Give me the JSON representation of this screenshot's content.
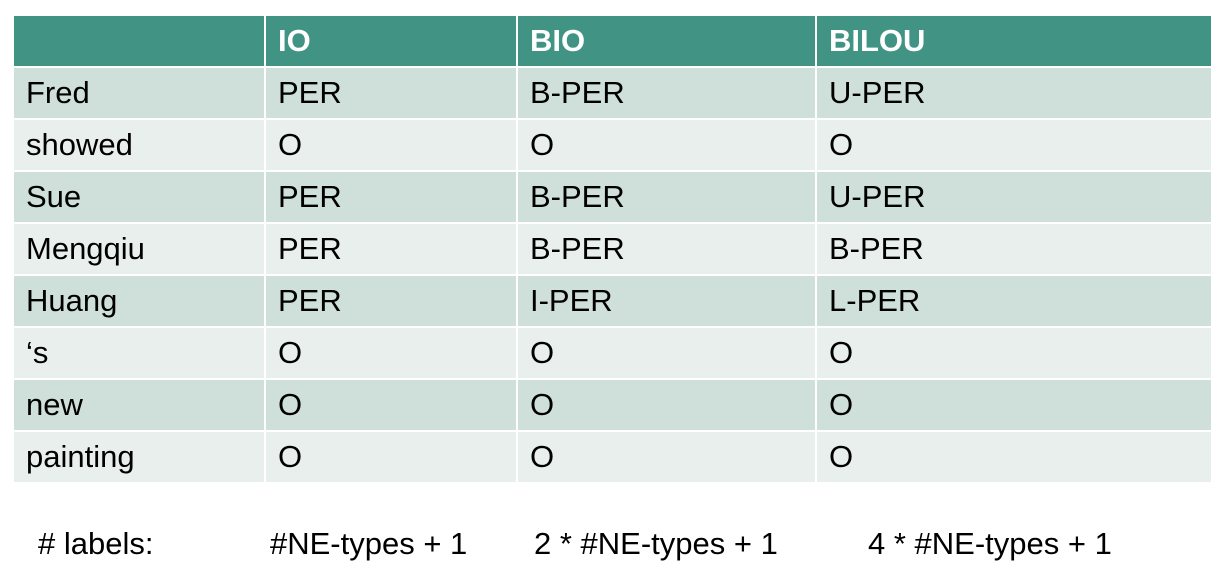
{
  "table": {
    "headers": [
      "",
      "IO",
      "BIO",
      "BILOU"
    ],
    "rows": [
      [
        "Fred",
        "PER",
        "B-PER",
        "U-PER"
      ],
      [
        "showed",
        "O",
        "O",
        "O"
      ],
      [
        "Sue",
        "PER",
        "B-PER",
        "U-PER"
      ],
      [
        "Mengqiu",
        "PER",
        "B-PER",
        "B-PER"
      ],
      [
        "Huang",
        "PER",
        "I-PER",
        "L-PER"
      ],
      [
        "‘s",
        "O",
        "O",
        "O"
      ],
      [
        "new",
        "O",
        "O",
        "O"
      ],
      [
        "painting",
        "O",
        "O",
        "O"
      ]
    ]
  },
  "footer": {
    "label": "# labels:",
    "io": "#NE-types + 1",
    "bio": "2 * #NE-types + 1",
    "bilou": "4 * #NE-types + 1"
  },
  "colors": {
    "header_bg": "#419484",
    "row_dark": "#cfdfd9",
    "row_light": "#e8efec"
  }
}
